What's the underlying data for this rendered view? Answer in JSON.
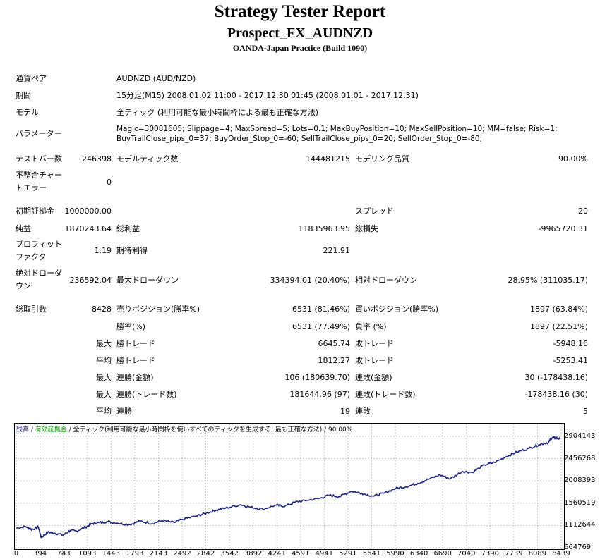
{
  "header": {
    "title": "Strategy Tester Report",
    "ea_name": "Prospect_FX_AUDNZD",
    "server": "OANDA-Japan Practice (Build 1090)"
  },
  "settings": {
    "symbol_label": "通貨ペア",
    "symbol_value": "AUDNZD (AUD/NZD)",
    "period_label": "期間",
    "period_value": "15分足(M15) 2008.01.02 11:00 - 2017.12.30 01:45 (2008.01.01 - 2017.12.31)",
    "model_label": "モデル",
    "model_value": "全ティック (利用可能な最小時間枠による最も正確な方法)",
    "params_label": "パラメーター",
    "params_line1": "Magic=30081605; Slippage=4; MaxSpread=5; Lots=0.1; MaxBuyPosition=10; MaxSellPosition=10; MM=false; Risk=1;",
    "params_line2": "BuyTrailClose_pips_0=37; BuyOrder_Stop_0=-60; SellTrailClose_pips_0=20; SellOrder_Stop_0=-80;"
  },
  "stats": {
    "bars_label": "テストバー数",
    "bars_value": "246398",
    "ticks_label": "モデルティック数",
    "ticks_value": "144481215",
    "quality_label": "モデリング品質",
    "quality_value": "90.00%",
    "mismatch_label": "不整合チャートエラー",
    "mismatch_value": "0",
    "deposit_label": "初期証拠金",
    "deposit_value": "1000000.00",
    "spread_label": "スプレッド",
    "spread_value": "20",
    "net_label": "純益",
    "net_value": "1870243.64",
    "gross_profit_label": "総利益",
    "gross_profit_value": "11835963.95",
    "gross_loss_label": "総損失",
    "gross_loss_value": "-9965720.31",
    "pf_label": "プロフィットファクタ",
    "pf_value": "1.19",
    "expected_label": "期待利得",
    "expected_value": "221.91",
    "abs_dd_label": "絶対ドローダウン",
    "abs_dd_value": "236592.04",
    "max_dd_label": "最大ドローダウン",
    "max_dd_value": "334394.01 (20.40%)",
    "rel_dd_label": "相対ドローダウン",
    "rel_dd_value": "28.95% (311035.17)",
    "trades_label": "総取引数",
    "trades_value": "8428",
    "short_label": "売りポジション(勝率%)",
    "short_value": "6531 (81.46%)",
    "long_label": "買いポジション(勝率%)",
    "long_value": "1897 (63.84%)",
    "winrate_label": "勝率(%)",
    "winrate_value": "6531 (77.49%)",
    "lossrate_label": "負率 (%)",
    "lossrate_value": "1897 (22.51%)",
    "max_label": "最大",
    "avg_label": "平均",
    "win_trade_label": "勝トレード",
    "loss_trade_label": "敗トレード",
    "max_win_value": "6645.74",
    "max_loss_value": "-5948.16",
    "avg_win_value": "1812.27",
    "avg_loss_value": "-5253.41",
    "consec_win_amt_label": "連勝(金額)",
    "consec_win_amt_value": "106 (180639.70)",
    "consec_loss_amt_label": "連敗(金額)",
    "consec_loss_amt_value": "30 (-178438.16)",
    "consec_win_cnt_label": "連勝(トレード数)",
    "consec_win_cnt_value": "181644.96 (97)",
    "consec_loss_cnt_label": "連敗(トレード数)",
    "consec_loss_cnt_value": "-178438.16 (30)",
    "consec_win_label": "連勝",
    "consec_win_value": "19",
    "consec_loss_label": "連敗",
    "consec_loss_value": "5"
  },
  "legend": {
    "balance": "残高",
    "sep1": " / ",
    "equity": "有効証拠金",
    "sep2": " / ",
    "model": "全ティック(利用可能な最小時間枠を使いすべてのティックを生成する, 最も正確な方法)",
    "sep3": " / ",
    "quality": "90.00%",
    "balance_color": "#1a237e",
    "equity_color": "#00a000"
  },
  "chart_data": {
    "type": "line",
    "x_ticks": [
      "0",
      "394",
      "743",
      "1093",
      "1443",
      "1793",
      "2143",
      "2492",
      "2842",
      "3542",
      "3892",
      "4241",
      "4591",
      "4941",
      "5291",
      "5641",
      "5990",
      "6340",
      "6690",
      "7040",
      "7390",
      "7739",
      "8089",
      "8439"
    ],
    "y_ticks": [
      "2904143",
      "2456268",
      "2008393",
      "1560519",
      "1112644",
      "664769"
    ],
    "ylim": [
      664769,
      2904143
    ],
    "xlim": [
      0,
      8600
    ],
    "series": [
      {
        "name": "残高",
        "color": "#1a237e",
        "x": [
          0,
          150,
          250,
          350,
          394,
          500,
          600,
          743,
          850,
          950,
          1093,
          1200,
          1300,
          1443,
          1600,
          1793,
          1950,
          2143,
          2300,
          2492,
          2600,
          2842,
          3000,
          3150,
          3300,
          3542,
          3700,
          3892,
          4100,
          4241,
          4400,
          4591,
          4800,
          4941,
          5100,
          5291,
          5450,
          5641,
          5800,
          5990,
          6150,
          6340,
          6500,
          6690,
          6850,
          7040,
          7200,
          7390,
          7550,
          7739,
          7900,
          8089,
          8250,
          8400,
          8439,
          8500,
          8580
        ],
        "y": [
          1060000,
          1090000,
          1030000,
          1080000,
          870000,
          980000,
          960000,
          920000,
          1010000,
          1000000,
          1080000,
          1150000,
          1170000,
          1190000,
          1160000,
          1130000,
          1200000,
          1150000,
          1210000,
          1170000,
          1230000,
          1300000,
          1360000,
          1420000,
          1460000,
          1530000,
          1480000,
          1440000,
          1520000,
          1500000,
          1580000,
          1620000,
          1660000,
          1720000,
          1690000,
          1800000,
          1760000,
          1700000,
          1760000,
          1860000,
          1890000,
          1960000,
          2040000,
          2130000,
          2050000,
          2200000,
          2180000,
          2330000,
          2380000,
          2500000,
          2590000,
          2660000,
          2740000,
          2780000,
          2860000,
          2880000,
          2850000
        ]
      }
    ]
  }
}
